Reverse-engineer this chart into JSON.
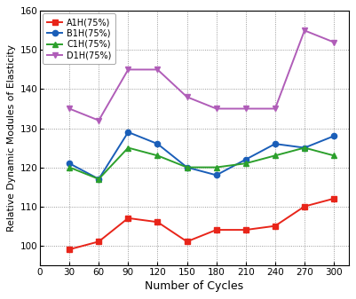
{
  "x": [
    30,
    60,
    90,
    120,
    150,
    180,
    210,
    240,
    270,
    300
  ],
  "A1H": [
    99,
    101,
    107,
    106,
    101,
    104,
    104,
    105,
    110,
    112
  ],
  "B1H": [
    121,
    117,
    129,
    126,
    120,
    118,
    122,
    126,
    125,
    128
  ],
  "C1H": [
    120,
    117,
    125,
    123,
    120,
    120,
    121,
    123,
    125,
    123
  ],
  "D1H": [
    135,
    132,
    145,
    145,
    138,
    135,
    135,
    135,
    155,
    152
  ],
  "colors": {
    "A1H": "#e8251a",
    "B1H": "#1a5eb8",
    "C1H": "#2ca02c",
    "D1H": "#b05db8"
  },
  "markers": {
    "A1H": "s",
    "B1H": "o",
    "C1H": "^",
    "D1H": "v"
  },
  "labels": {
    "A1H": "A1H(75%)",
    "B1H": "B1H(75%)",
    "C1H": "C1H(75%)",
    "D1H": "D1H(75%)"
  },
  "xlabel": "Number of Cycles",
  "ylabel": "Relative Dynamic Modules of Elasticity",
  "xlim": [
    0,
    315
  ],
  "ylim": [
    95,
    160
  ],
  "yticks": [
    100,
    110,
    120,
    130,
    140,
    150,
    160
  ],
  "xticks": [
    0,
    30,
    60,
    90,
    120,
    150,
    180,
    210,
    240,
    270,
    300
  ],
  "linewidth": 1.4,
  "markersize": 4.5
}
